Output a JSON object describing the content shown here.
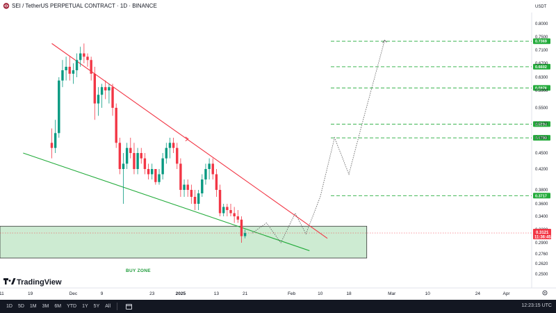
{
  "header": {
    "title": "SEI / TetherUS PERPETUAL CONTRACT · 1D · BINANCE",
    "currency": "USDT"
  },
  "bottom_bar": {
    "timeframes": [
      "1D",
      "5D",
      "1M",
      "3M",
      "6M",
      "YTD",
      "1Y",
      "5Y",
      "All"
    ],
    "clock": "12:23:15 UTC"
  },
  "logo": {
    "text": "TradingView"
  },
  "colors": {
    "up": "#089981",
    "down": "#f23645",
    "trend_upper": "#f23645",
    "trend_lower": "#22ab3a",
    "level": "#22ab3a",
    "zone_fill": "#cdebd2",
    "zone_border": "#333333"
  },
  "chart_data": {
    "type": "candlestick",
    "symbol": "SEI / TetherUS PERPETUAL CONTRACT",
    "interval": "1D",
    "exchange": "BINANCE",
    "y_axis": {
      "ticks": [
        "0.8000",
        "0.7500",
        "0.7100",
        "0.6700",
        "0.6300",
        "0.5900",
        "0.5500",
        "0.5100",
        "0.4800",
        "0.4500",
        "0.4200",
        "0.3800",
        "0.3600",
        "0.3400",
        "0.3200",
        "0.2900",
        "0.2760",
        "0.2620",
        "0.2500"
      ],
      "tick_values": [
        0.8,
        0.75,
        0.71,
        0.67,
        0.63,
        0.59,
        0.55,
        0.51,
        0.48,
        0.45,
        0.42,
        0.38,
        0.36,
        0.34,
        0.32,
        0.29,
        0.276,
        0.262,
        0.25
      ]
    },
    "x_axis": {
      "ticks": [
        "11",
        "19",
        "Dec",
        "9",
        "23",
        "2025",
        "13",
        "21",
        "Feb",
        "10",
        "18",
        "Mar",
        "10",
        "24",
        "Apr"
      ],
      "tick_days": [
        -14,
        -6,
        6,
        14,
        28,
        36,
        46,
        54,
        67,
        75,
        83,
        95,
        105,
        119,
        127
      ]
    },
    "first_candle_date": "2024-11-25",
    "candles": [
      [
        0.47,
        0.5,
        0.44,
        0.46
      ],
      [
        0.46,
        0.52,
        0.45,
        0.49
      ],
      [
        0.49,
        0.63,
        0.48,
        0.62
      ],
      [
        0.62,
        0.68,
        0.6,
        0.65
      ],
      [
        0.65,
        0.69,
        0.62,
        0.66
      ],
      [
        0.66,
        0.69,
        0.62,
        0.64
      ],
      [
        0.64,
        0.67,
        0.61,
        0.65
      ],
      [
        0.65,
        0.7,
        0.63,
        0.68
      ],
      [
        0.68,
        0.72,
        0.66,
        0.7
      ],
      [
        0.7,
        0.73,
        0.67,
        0.69
      ],
      [
        0.69,
        0.7,
        0.66,
        0.68
      ],
      [
        0.68,
        0.69,
        0.62,
        0.64
      ],
      [
        0.64,
        0.66,
        0.52,
        0.56
      ],
      [
        0.56,
        0.6,
        0.53,
        0.58
      ],
      [
        0.58,
        0.61,
        0.55,
        0.6
      ],
      [
        0.6,
        0.62,
        0.57,
        0.59
      ],
      [
        0.59,
        0.61,
        0.56,
        0.6
      ],
      [
        0.6,
        0.61,
        0.53,
        0.55
      ],
      [
        0.55,
        0.56,
        0.46,
        0.47
      ],
      [
        0.47,
        0.48,
        0.41,
        0.42
      ],
      [
        0.42,
        0.45,
        0.36,
        0.43
      ],
      [
        0.43,
        0.47,
        0.42,
        0.46
      ],
      [
        0.46,
        0.48,
        0.44,
        0.45
      ],
      [
        0.45,
        0.47,
        0.41,
        0.42
      ],
      [
        0.42,
        0.46,
        0.41,
        0.45
      ],
      [
        0.45,
        0.46,
        0.43,
        0.44
      ],
      [
        0.44,
        0.45,
        0.41,
        0.42
      ],
      [
        0.42,
        0.43,
        0.4,
        0.41
      ],
      [
        0.41,
        0.43,
        0.4,
        0.42
      ],
      [
        0.42,
        0.42,
        0.39,
        0.395
      ],
      [
        0.395,
        0.42,
        0.39,
        0.41
      ],
      [
        0.41,
        0.45,
        0.4,
        0.44
      ],
      [
        0.44,
        0.47,
        0.43,
        0.46
      ],
      [
        0.46,
        0.48,
        0.44,
        0.47
      ],
      [
        0.47,
        0.48,
        0.45,
        0.46
      ],
      [
        0.46,
        0.47,
        0.42,
        0.43
      ],
      [
        0.43,
        0.44,
        0.37,
        0.38
      ],
      [
        0.38,
        0.4,
        0.37,
        0.39
      ],
      [
        0.39,
        0.4,
        0.37,
        0.38
      ],
      [
        0.38,
        0.39,
        0.36,
        0.37
      ],
      [
        0.37,
        0.38,
        0.35,
        0.36
      ],
      [
        0.36,
        0.38,
        0.35,
        0.375
      ],
      [
        0.375,
        0.41,
        0.37,
        0.4
      ],
      [
        0.4,
        0.43,
        0.39,
        0.42
      ],
      [
        0.42,
        0.44,
        0.4,
        0.43
      ],
      [
        0.43,
        0.44,
        0.4,
        0.41
      ],
      [
        0.41,
        0.42,
        0.37,
        0.38
      ],
      [
        0.38,
        0.39,
        0.34,
        0.345
      ],
      [
        0.345,
        0.36,
        0.34,
        0.355
      ],
      [
        0.355,
        0.36,
        0.34,
        0.35
      ],
      [
        0.35,
        0.36,
        0.34,
        0.345
      ],
      [
        0.345,
        0.355,
        0.33,
        0.34
      ],
      [
        0.34,
        0.35,
        0.33,
        0.335
      ],
      [
        0.335,
        0.34,
        0.29,
        0.305
      ],
      [
        0.305,
        0.32,
        0.3,
        0.312
      ]
    ],
    "drawings": {
      "upper_trendline": {
        "from": [
          0,
          0.73
        ],
        "to": [
          77,
          0.3
        ]
      },
      "lower_trendline": {
        "from": [
          -8,
          0.45
        ],
        "to": [
          72,
          0.28
        ]
      },
      "buy_zone": {
        "label": "BUY ZONE",
        "from_day": -30,
        "to_day": 88,
        "top": 0.325,
        "bottom": 0.27
      },
      "target_levels": [
        {
          "label": "0.7369",
          "value": 0.7369
        },
        {
          "label": "0.6602",
          "value": 0.6602
        },
        {
          "label": "0.5976",
          "value": 0.5976
        },
        {
          "label": "0.5094",
          "value": 0.5094
        },
        {
          "label": "0.4798",
          "value": 0.4798
        },
        {
          "label": "0.3717",
          "value": 0.3717
        }
      ],
      "projected_path": [
        [
          56,
          0.312
        ],
        [
          60,
          0.33
        ],
        [
          64,
          0.29
        ],
        [
          68,
          0.345
        ],
        [
          71,
          0.31
        ],
        [
          75,
          0.37
        ],
        [
          79,
          0.48
        ],
        [
          83,
          0.41
        ],
        [
          87,
          0.52
        ],
        [
          93,
          0.74
        ]
      ]
    },
    "current_price": {
      "value": 0.3121,
      "label": "0.3121",
      "countdown": "11:36:45"
    }
  }
}
